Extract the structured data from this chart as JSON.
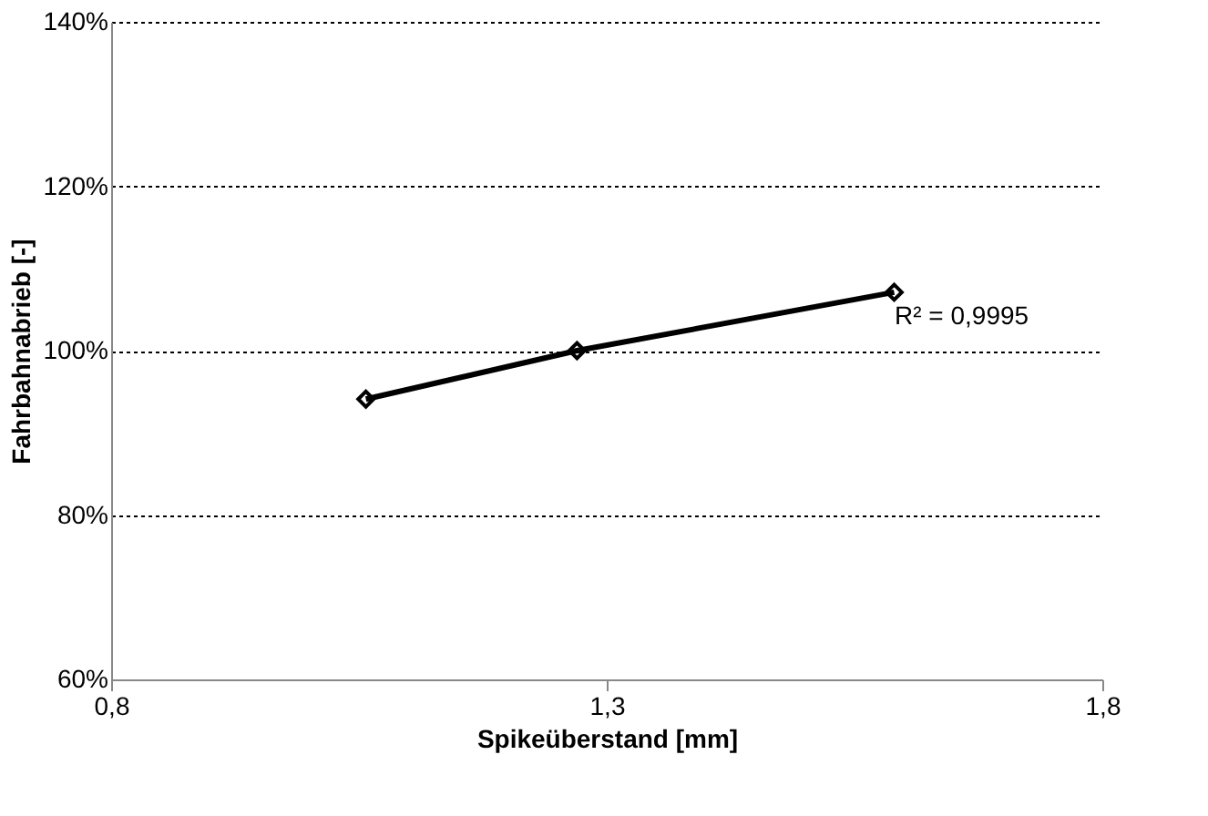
{
  "chart_data": {
    "type": "line",
    "xlabel": "Spikeüberstand [mm]",
    "ylabel": "Fahrbahnabrieb [-]",
    "x": [
      1.057,
      1.27,
      1.59
    ],
    "series": [
      {
        "color": "#000000",
        "values": [
          94.1,
          100,
          107.1
        ]
      }
    ],
    "xlim": [
      0.8,
      1.8
    ],
    "xticks": [
      {
        "value": 0.8,
        "label": "0,8"
      },
      {
        "value": 1.3,
        "label": "1,3"
      },
      {
        "value": 1.8,
        "label": "1,8"
      }
    ],
    "ylim": [
      60,
      140
    ],
    "yticks": [
      {
        "value": 60,
        "label": "60%"
      },
      {
        "value": 80,
        "label": "80%"
      },
      {
        "value": 100,
        "label": "100%"
      },
      {
        "value": 120,
        "label": "120%"
      },
      {
        "value": 140,
        "label": "140%"
      }
    ],
    "grid": "y",
    "marker": "diamond",
    "line_style": "solid",
    "annotations": [
      "R² = 0,9995"
    ]
  }
}
